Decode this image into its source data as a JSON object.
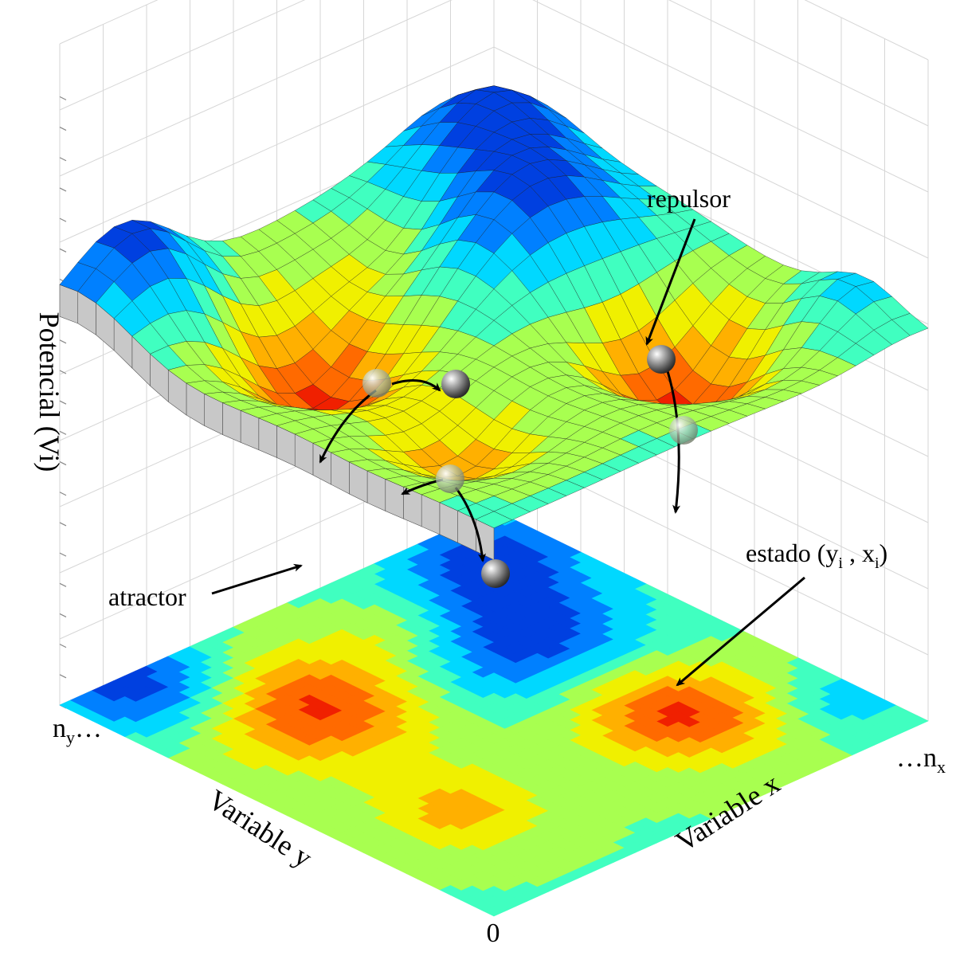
{
  "diagram": {
    "y_axis_label": "Potencial (Vi)",
    "x_axis_label": "Variable x",
    "z_axis_label": "Variable y",
    "origin_label": "0",
    "x_end_label": {
      "prefix": "…n",
      "sub": "x"
    },
    "y_end_label": {
      "prefix": "n",
      "sub": "y",
      "suffix": "…"
    },
    "annotations": {
      "repulsor": "repulsor",
      "atractor": "atractor",
      "estado": {
        "open": "estado (y",
        "sub1": "i",
        "mid": " , x",
        "sub2": "i",
        "close": ")"
      }
    }
  },
  "colors": {
    "palette": [
      "#0010a0",
      "#0040e0",
      "#0080ff",
      "#00d8ff",
      "#40ffc0",
      "#a8ff50",
      "#f0f000",
      "#ffb000",
      "#ff6a00",
      "#f02000",
      "#c00000"
    ],
    "mesh_line": "#1a1a1a",
    "wall_grid": "#d6d6d6",
    "side_wall": "#c8c8c8"
  }
}
